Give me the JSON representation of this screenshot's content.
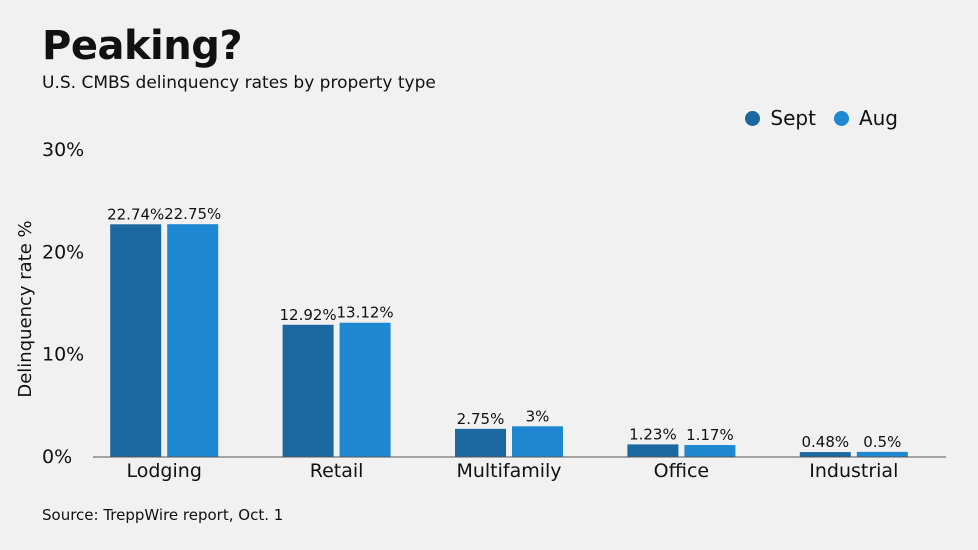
{
  "header": {
    "title": "Peaking?",
    "subtitle": "U.S. CMBS delinquency rates by property type"
  },
  "footer": {
    "source": "Source: TreppWire report, Oct. 1"
  },
  "colors": {
    "sept": "#1b679f",
    "aug": "#1e88d3",
    "axis": "#555555",
    "background": "#f0f1f0"
  },
  "chart_data": {
    "type": "bar",
    "title": "Peaking?",
    "subtitle": "U.S. CMBS delinquency rates by property type",
    "xlabel": "",
    "ylabel": "Delinquency rate %",
    "ylim": [
      0,
      30
    ],
    "yticks": [
      0,
      10,
      20,
      30
    ],
    "ytick_labels": [
      "0%",
      "10%",
      "20%",
      "30%"
    ],
    "grid": false,
    "legend_position": "top-right",
    "categories": [
      "Lodging",
      "Retail",
      "Multifamily",
      "Office",
      "Industrial"
    ],
    "series": [
      {
        "name": "Sept",
        "color": "#1b679f",
        "values": [
          22.74,
          12.92,
          2.75,
          1.23,
          0.48
        ],
        "labels": [
          "22.74%",
          "12.92%",
          "2.75%",
          "1.23%",
          "0.48%"
        ]
      },
      {
        "name": "Aug",
        "color": "#1e88d3",
        "values": [
          22.75,
          13.12,
          3,
          1.17,
          0.5
        ],
        "labels": [
          "22.75%",
          "13.12%",
          "3%",
          "1.17%",
          "0.5%"
        ]
      }
    ]
  }
}
